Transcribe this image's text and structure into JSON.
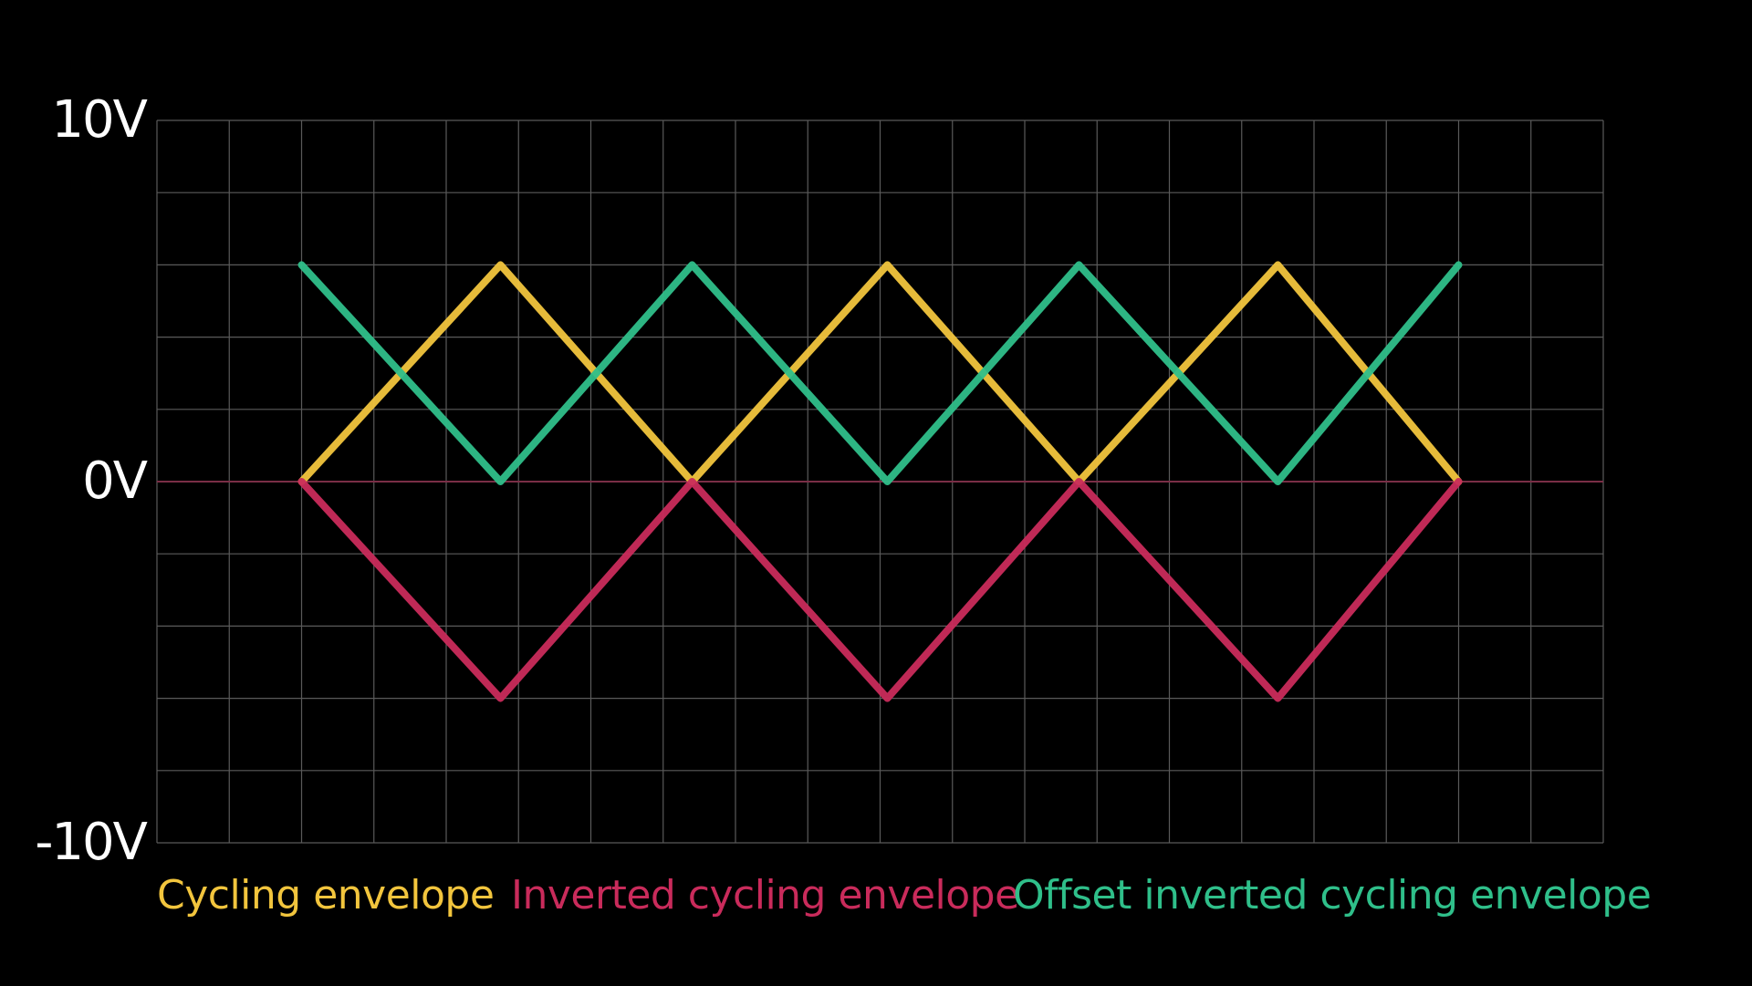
{
  "colors": {
    "background": "#000000",
    "grid": "#5a5a5a",
    "zero_line": "#7a2e46",
    "cycling": "#f2c53d",
    "inverted": "#c92b5b",
    "offset": "#2fbf8a"
  },
  "chart_data": {
    "type": "line",
    "title": "",
    "xlabel": "",
    "ylabel": "",
    "ylim": [
      -10,
      10
    ],
    "xlim": [
      0,
      20
    ],
    "grid": true,
    "y_ticks": [
      {
        "value": 10,
        "label": "10V"
      },
      {
        "value": 0,
        "label": "0V"
      },
      {
        "value": -10,
        "label": "-10V"
      }
    ],
    "legend_position": "bottom",
    "series": [
      {
        "name": "Cycling envelope",
        "color": "#f2c53d",
        "points": [
          [
            2,
            0
          ],
          [
            4.75,
            6
          ],
          [
            7.4,
            0
          ],
          [
            10.1,
            6
          ],
          [
            12.75,
            0
          ],
          [
            15.5,
            6
          ],
          [
            18,
            0
          ]
        ]
      },
      {
        "name": "Inverted cycling envelope",
        "color": "#c92b5b",
        "points": [
          [
            2,
            0
          ],
          [
            4.75,
            -6
          ],
          [
            7.4,
            0
          ],
          [
            10.1,
            -6
          ],
          [
            12.75,
            0
          ],
          [
            15.5,
            -6
          ],
          [
            18,
            0
          ]
        ]
      },
      {
        "name": "Offset inverted cycling envelope",
        "color": "#2fbf8a",
        "points": [
          [
            2,
            6
          ],
          [
            4.75,
            0
          ],
          [
            7.4,
            6
          ],
          [
            10.1,
            0
          ],
          [
            12.75,
            6
          ],
          [
            15.5,
            0
          ],
          [
            18,
            6
          ]
        ]
      }
    ]
  }
}
